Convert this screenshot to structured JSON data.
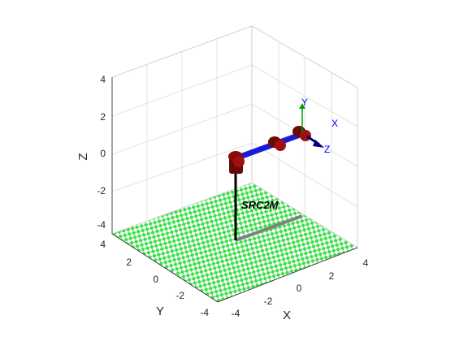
{
  "figure": {
    "robot_name": "SRC2M",
    "axes": {
      "x_label": "X",
      "y_label": "Y",
      "z_label": "Z",
      "x_ticks": [
        "-4",
        "-2",
        "0",
        "2",
        "4"
      ],
      "y_ticks": [
        "-4",
        "-2",
        "0",
        "2",
        "4"
      ],
      "z_ticks": [
        "-4",
        "-2",
        "0",
        "2",
        "4"
      ]
    },
    "frame_labels": {
      "x": "X",
      "y": "Y",
      "z": "Z"
    },
    "colors": {
      "floor": "#3ee04a",
      "link": "#1a1ad9",
      "joint": "#8b0a0a",
      "base_link": "#000000",
      "shadow": "#808080",
      "grid": "#dcdcdc",
      "frame_x": "#0000ff",
      "frame_y": "#00a000",
      "frame_z": "#0000a0"
    }
  },
  "chart_data": {
    "type": "3d-robot-plot",
    "title": "",
    "xlabel": "X",
    "ylabel": "Y",
    "zlabel": "Z",
    "xlim": [
      -4,
      4
    ],
    "ylim": [
      -4,
      4
    ],
    "zlim": [
      -4,
      4
    ],
    "grid": true
  }
}
